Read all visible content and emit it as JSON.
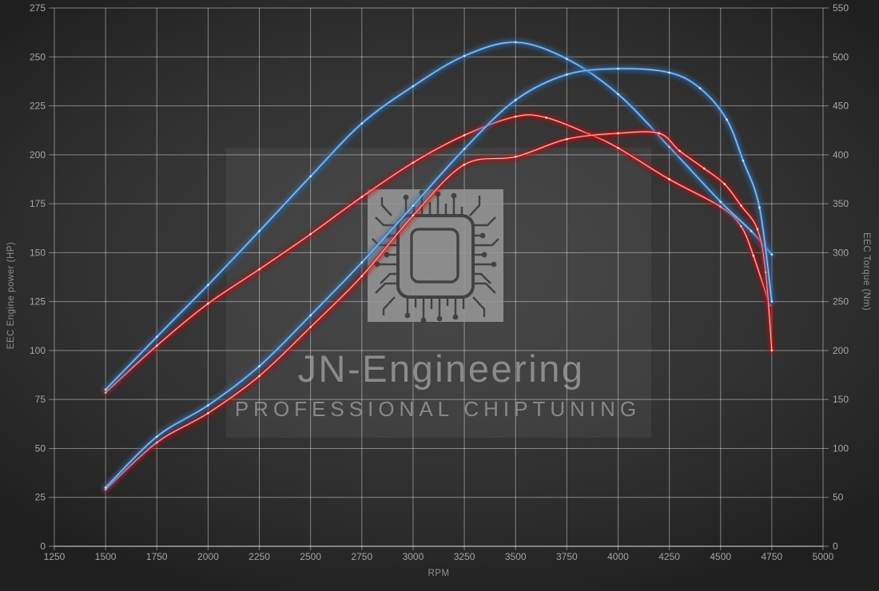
{
  "watermark": {
    "title": "JN-Engineering",
    "subtitle": "PROFESSIONAL CHIPTUNING",
    "logo": "microchip-icon"
  },
  "chart_data": {
    "type": "line",
    "title": "",
    "xlabel": "RPM",
    "ylabel_left": "EEC Engine power (HP)",
    "ylabel_right": "EEC Torque (Nm)",
    "x_range": [
      1250,
      5000
    ],
    "left_range": [
      0,
      275
    ],
    "right_range": [
      0,
      550
    ],
    "grid": true,
    "legend": "none",
    "x_ticks": [
      1250,
      1500,
      1750,
      2000,
      2250,
      2500,
      2750,
      3000,
      3250,
      3500,
      3750,
      4000,
      4250,
      4500,
      4750,
      5000
    ],
    "left_ticks": [
      0,
      25,
      50,
      75,
      100,
      125,
      150,
      175,
      200,
      225,
      250,
      275
    ],
    "right_ticks": [
      0,
      50,
      100,
      150,
      200,
      250,
      300,
      350,
      400,
      450,
      500,
      550
    ],
    "colors": {
      "tuned": "#3f7fc1",
      "tuned_core": "#a9cdf0",
      "tuned_glow": "#2b6cb0",
      "original": "#d42222",
      "original_core": "#ffc9c9",
      "original_glow": "#a80f0f",
      "grid": "rgba(255,255,255,0.42)",
      "tick_text": "#a5a5a5"
    },
    "series": [
      {
        "name": "torque-original-red",
        "axis": "right",
        "unit": "Nm",
        "color": "#d42222",
        "core": "#ffc9c9",
        "glow": "#a80f0f",
        "peak": {
          "rpm": 3500,
          "value": 439
        },
        "values": [
          [
            1500,
            157
          ],
          [
            1750,
            205
          ],
          [
            2000,
            248
          ],
          [
            2250,
            283
          ],
          [
            2500,
            319
          ],
          [
            2750,
            357
          ],
          [
            3000,
            392
          ],
          [
            3250,
            420
          ],
          [
            3500,
            439
          ],
          [
            3650,
            438
          ],
          [
            3860,
            421
          ],
          [
            4000,
            407
          ],
          [
            4250,
            375
          ],
          [
            4500,
            347
          ],
          [
            4600,
            327
          ],
          [
            4660,
            297
          ],
          [
            4740,
            246
          ]
        ]
      },
      {
        "name": "torque-tuned-blue",
        "axis": "right",
        "unit": "Nm",
        "color": "#3f7fc1",
        "core": "#a9cdf0",
        "glow": "#2b6cb0",
        "peak": {
          "rpm": 3500,
          "value": 515
        },
        "values": [
          [
            1500,
            160
          ],
          [
            1750,
            214
          ],
          [
            2000,
            267
          ],
          [
            2250,
            322
          ],
          [
            2500,
            378
          ],
          [
            2750,
            432
          ],
          [
            3000,
            470
          ],
          [
            3250,
            501
          ],
          [
            3500,
            515
          ],
          [
            3750,
            498
          ],
          [
            4000,
            462
          ],
          [
            4250,
            408
          ],
          [
            4500,
            352
          ],
          [
            4650,
            322
          ],
          [
            4750,
            298
          ]
        ]
      },
      {
        "name": "power-original-red",
        "axis": "left",
        "unit": "HP",
        "color": "#d42222",
        "core": "#ffc9c9",
        "glow": "#a80f0f",
        "peak": {
          "rpm": 4000,
          "value": 211
        },
        "values": [
          [
            1500,
            29
          ],
          [
            1750,
            53
          ],
          [
            2000,
            68
          ],
          [
            2250,
            87
          ],
          [
            2500,
            112
          ],
          [
            2750,
            138
          ],
          [
            3000,
            169
          ],
          [
            3250,
            195
          ],
          [
            3500,
            199
          ],
          [
            3750,
            208
          ],
          [
            4000,
            211
          ],
          [
            4200,
            211
          ],
          [
            4300,
            202
          ],
          [
            4420,
            193
          ],
          [
            4520,
            185
          ],
          [
            4600,
            174
          ],
          [
            4680,
            162
          ],
          [
            4720,
            140
          ],
          [
            4750,
            100
          ]
        ]
      },
      {
        "name": "power-tuned-blue",
        "axis": "left",
        "unit": "HP",
        "color": "#3f7fc1",
        "core": "#a9cdf0",
        "glow": "#2b6cb0",
        "peak": {
          "rpm": 4000,
          "value": 244
        },
        "values": [
          [
            1500,
            30
          ],
          [
            1750,
            56
          ],
          [
            2000,
            72
          ],
          [
            2250,
            92
          ],
          [
            2500,
            118
          ],
          [
            2750,
            145
          ],
          [
            3000,
            174
          ],
          [
            3250,
            203
          ],
          [
            3500,
            228
          ],
          [
            3750,
            241
          ],
          [
            4000,
            244
          ],
          [
            4250,
            242
          ],
          [
            4400,
            234
          ],
          [
            4530,
            218
          ],
          [
            4610,
            197
          ],
          [
            4690,
            173
          ],
          [
            4750,
            125
          ]
        ]
      }
    ]
  }
}
